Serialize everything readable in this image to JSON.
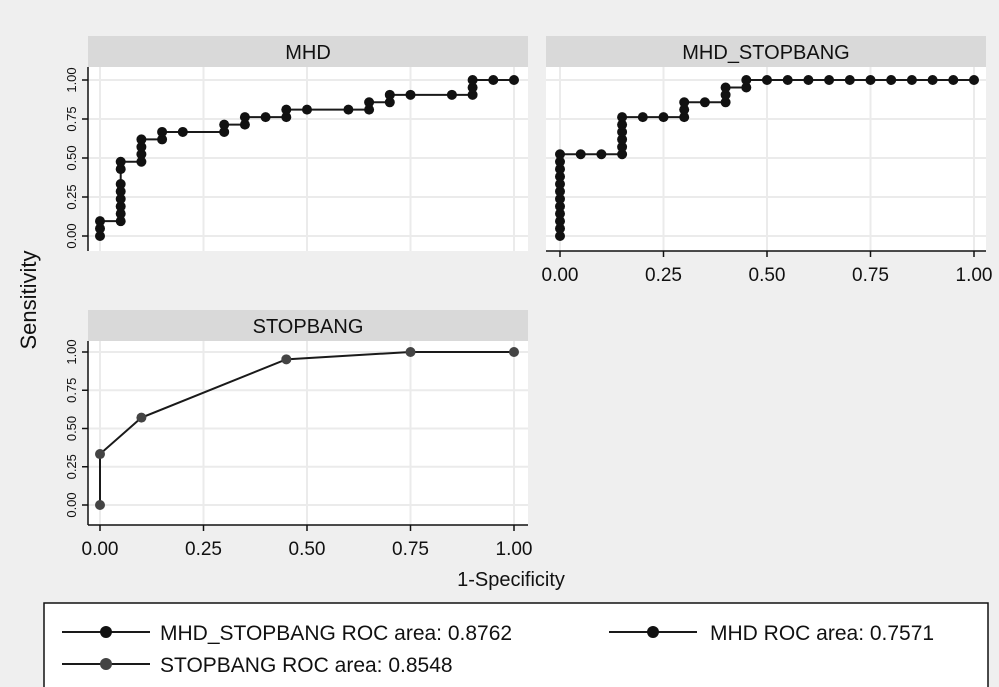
{
  "chart_data": {
    "type": "line",
    "ylabel": "Sensitivity",
    "xlabel": "1-Specificity",
    "xlim": [
      0,
      1
    ],
    "ylim": [
      0,
      1
    ],
    "x_ticks": [
      "0.00",
      "0.25",
      "0.50",
      "0.75",
      "1.00"
    ],
    "y_ticks": [
      "0.00",
      "0.25",
      "0.50",
      "0.75",
      "1.00"
    ],
    "grid": true,
    "legend_position": "bottom",
    "panels": [
      {
        "title": "MHD",
        "points": [
          [
            0,
            0
          ],
          [
            0,
            0.048
          ],
          [
            0,
            0.095
          ],
          [
            0.05,
            0.095
          ],
          [
            0.05,
            0.143
          ],
          [
            0.05,
            0.19
          ],
          [
            0.05,
            0.238
          ],
          [
            0.05,
            0.286
          ],
          [
            0.05,
            0.333
          ],
          [
            0.05,
            0.429
          ],
          [
            0.05,
            0.476
          ],
          [
            0.1,
            0.476
          ],
          [
            0.1,
            0.524
          ],
          [
            0.1,
            0.571
          ],
          [
            0.1,
            0.619
          ],
          [
            0.15,
            0.619
          ],
          [
            0.15,
            0.667
          ],
          [
            0.2,
            0.667
          ],
          [
            0.3,
            0.667
          ],
          [
            0.3,
            0.714
          ],
          [
            0.35,
            0.714
          ],
          [
            0.35,
            0.762
          ],
          [
            0.4,
            0.762
          ],
          [
            0.45,
            0.762
          ],
          [
            0.45,
            0.81
          ],
          [
            0.5,
            0.81
          ],
          [
            0.6,
            0.81
          ],
          [
            0.65,
            0.81
          ],
          [
            0.65,
            0.857
          ],
          [
            0.7,
            0.857
          ],
          [
            0.7,
            0.905
          ],
          [
            0.75,
            0.905
          ],
          [
            0.85,
            0.905
          ],
          [
            0.9,
            0.905
          ],
          [
            0.9,
            0.952
          ],
          [
            0.9,
            1.0
          ],
          [
            0.95,
            1.0
          ],
          [
            1.0,
            1.0
          ]
        ]
      },
      {
        "title": "MHD_STOPBANG",
        "points": [
          [
            0,
            0
          ],
          [
            0,
            0.048
          ],
          [
            0,
            0.095
          ],
          [
            0,
            0.143
          ],
          [
            0,
            0.19
          ],
          [
            0,
            0.238
          ],
          [
            0,
            0.286
          ],
          [
            0,
            0.333
          ],
          [
            0,
            0.381
          ],
          [
            0,
            0.429
          ],
          [
            0,
            0.476
          ],
          [
            0,
            0.524
          ],
          [
            0.05,
            0.524
          ],
          [
            0.1,
            0.524
          ],
          [
            0.15,
            0.524
          ],
          [
            0.15,
            0.571
          ],
          [
            0.15,
            0.619
          ],
          [
            0.15,
            0.667
          ],
          [
            0.15,
            0.714
          ],
          [
            0.15,
            0.762
          ],
          [
            0.2,
            0.762
          ],
          [
            0.25,
            0.762
          ],
          [
            0.3,
            0.762
          ],
          [
            0.3,
            0.81
          ],
          [
            0.3,
            0.857
          ],
          [
            0.35,
            0.857
          ],
          [
            0.4,
            0.857
          ],
          [
            0.4,
            0.905
          ],
          [
            0.4,
            0.952
          ],
          [
            0.45,
            0.952
          ],
          [
            0.45,
            1.0
          ],
          [
            0.5,
            1.0
          ],
          [
            0.55,
            1.0
          ],
          [
            0.6,
            1.0
          ],
          [
            0.65,
            1.0
          ],
          [
            0.7,
            1.0
          ],
          [
            0.75,
            1.0
          ],
          [
            0.8,
            1.0
          ],
          [
            0.85,
            1.0
          ],
          [
            0.9,
            1.0
          ],
          [
            0.95,
            1.0
          ],
          [
            1.0,
            1.0
          ]
        ]
      },
      {
        "title": "STOPBANG",
        "points": [
          [
            0,
            0
          ],
          [
            0,
            0.333
          ],
          [
            0.1,
            0.571
          ],
          [
            0.45,
            0.952
          ],
          [
            0.75,
            1.0
          ],
          [
            1.0,
            1.0
          ]
        ]
      }
    ],
    "legend": [
      "MHD_STOPBANG ROC area: 0.8762",
      "MHD ROC area: 0.7571",
      "STOPBANG ROC area: 0.8548"
    ]
  },
  "colors": {
    "background": "#efefef",
    "plot_bg": "#ffffff",
    "header_bg": "#d9d9d9",
    "grid": "#ebebeb",
    "line": "#1a1a1a",
    "marker_dark": "#111111",
    "marker_gray": "#444444"
  }
}
